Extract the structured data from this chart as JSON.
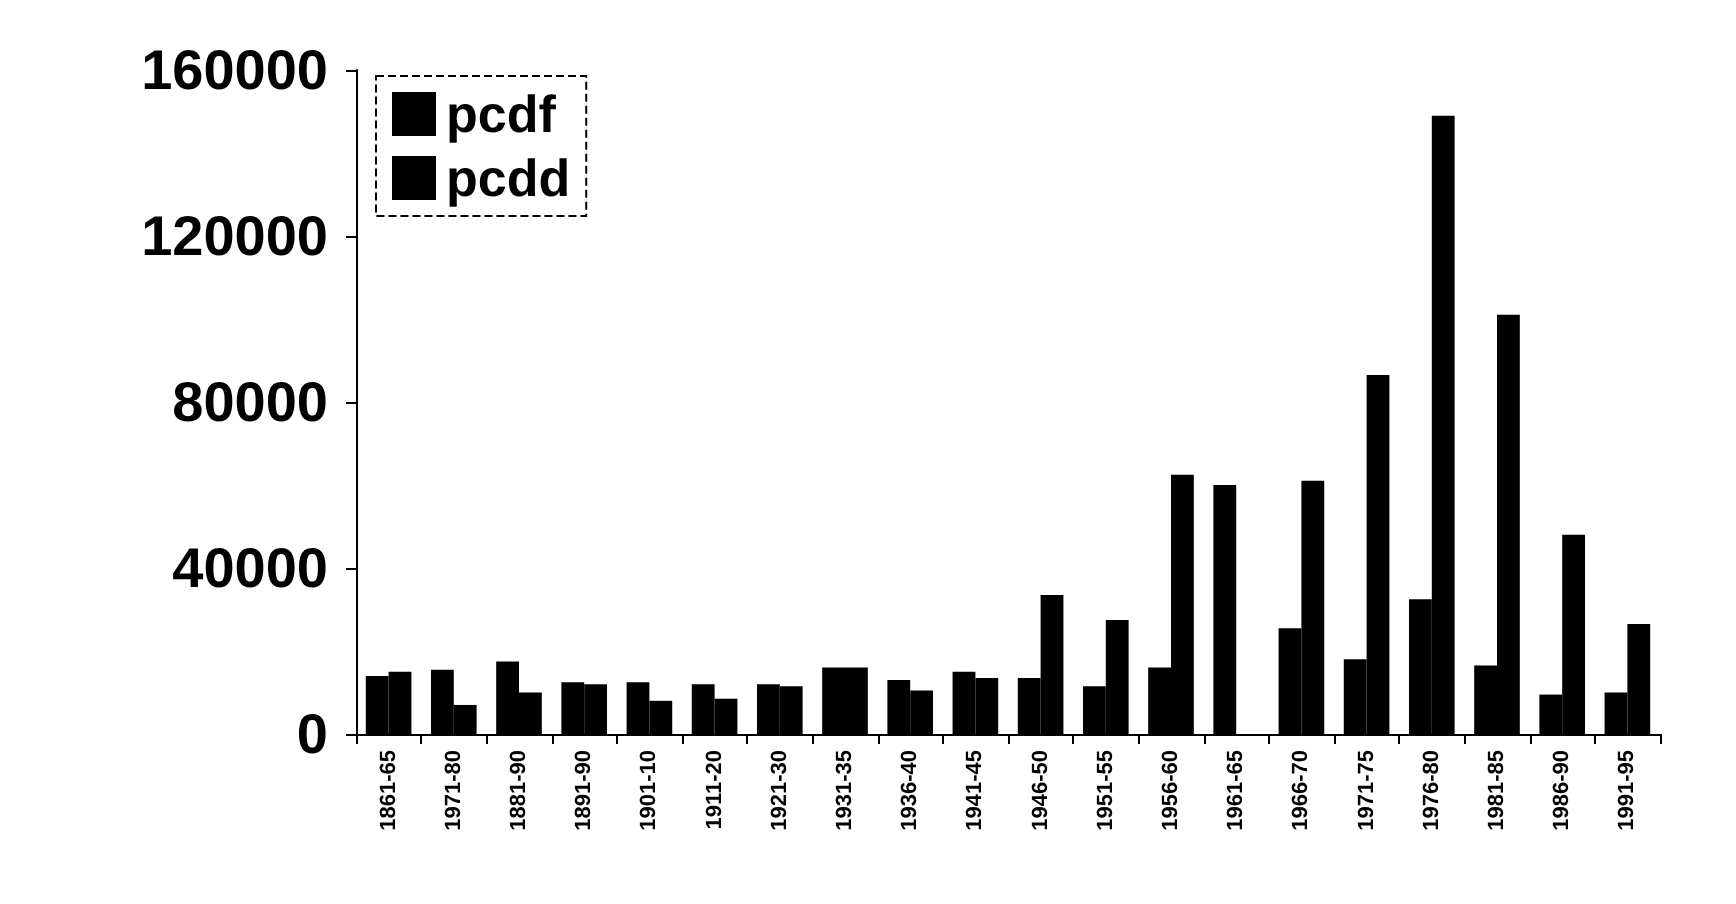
{
  "chart_data": {
    "type": "bar",
    "categories": [
      "1861-65",
      "1971-80",
      "1881-90",
      "1891-90",
      "1901-10",
      "1911-20",
      "1921-30",
      "1931-35",
      "1936-40",
      "1941-45",
      "1946-50",
      "1951-55",
      "1956-60",
      "1961-65",
      "1966-70",
      "1971-75",
      "1976-80",
      "1981-85",
      "1986-90",
      "1991-95"
    ],
    "series": [
      {
        "name": "pcdf",
        "color": "#000000",
        "values": [
          14000,
          15500,
          17500,
          12500,
          12500,
          12000,
          12000,
          16000,
          13000,
          15000,
          13500,
          11500,
          16000,
          60000,
          25500,
          18000,
          32500,
          16500,
          9500,
          10000
        ]
      },
      {
        "name": "pcdd",
        "color": "#000000",
        "values": [
          15000,
          7000,
          10000,
          12000,
          8000,
          8500,
          11500,
          16000,
          10500,
          13500,
          33500,
          27500,
          62500,
          null,
          61000,
          86500,
          149000,
          101000,
          48000,
          26500
        ]
      }
    ],
    "ylim": [
      0,
      160000
    ],
    "yticks": [
      0,
      40000,
      80000,
      120000,
      160000
    ],
    "grid": false,
    "legend": "top left"
  }
}
